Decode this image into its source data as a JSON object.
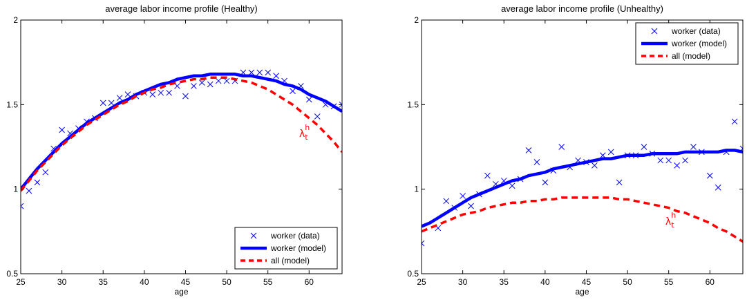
{
  "colors": {
    "worker": "#0000ff",
    "all": "#ff0000",
    "axis": "#000000"
  },
  "chart_data": [
    {
      "type": "line",
      "title": "average labor income profile (Healthy)",
      "xlabel": "age",
      "ylabel": "",
      "xlim": [
        25,
        64
      ],
      "ylim": [
        0.5,
        2
      ],
      "xticks": [
        25,
        30,
        35,
        40,
        45,
        50,
        55,
        60
      ],
      "yticks": [
        0.5,
        1,
        1.5,
        2
      ],
      "ytick_labels": [
        "0.5",
        "1",
        "1.5",
        "2"
      ],
      "legend_position": "bottom-right",
      "annotation": {
        "base": "λ",
        "sup": "h",
        "sub": "t",
        "x": 58.8,
        "y": 1.31,
        "color": "#ff0000"
      },
      "series": [
        {
          "name": "worker (data)",
          "style": "marker-x",
          "color": "#0000ff",
          "x": [
            25,
            26,
            27,
            28,
            29,
            30,
            31,
            32,
            33,
            34,
            35,
            36,
            37,
            38,
            39,
            40,
            41,
            42,
            43,
            44,
            45,
            46,
            47,
            48,
            49,
            50,
            51,
            52,
            53,
            54,
            55,
            56,
            57,
            58,
            59,
            60,
            61,
            62,
            63,
            64
          ],
          "y": [
            0.9,
            0.99,
            1.04,
            1.1,
            1.24,
            1.35,
            1.33,
            1.36,
            1.4,
            1.42,
            1.51,
            1.51,
            1.54,
            1.56,
            1.55,
            1.57,
            1.56,
            1.57,
            1.57,
            1.61,
            1.55,
            1.61,
            1.63,
            1.62,
            1.64,
            1.64,
            1.64,
            1.69,
            1.69,
            1.69,
            1.69,
            1.67,
            1.64,
            1.58,
            1.61,
            1.53,
            1.43,
            1.5,
            1.49,
            1.5
          ]
        },
        {
          "name": "worker (model)",
          "style": "solid",
          "color": "#0000ff",
          "x": [
            25,
            26,
            27,
            28,
            29,
            30,
            31,
            32,
            33,
            34,
            35,
            36,
            37,
            38,
            39,
            40,
            41,
            42,
            43,
            44,
            45,
            46,
            47,
            48,
            49,
            50,
            51,
            52,
            53,
            54,
            55,
            56,
            57,
            58,
            59,
            60,
            61,
            62,
            63,
            64
          ],
          "y": [
            1.0,
            1.06,
            1.12,
            1.17,
            1.22,
            1.27,
            1.31,
            1.35,
            1.39,
            1.42,
            1.45,
            1.48,
            1.51,
            1.53,
            1.56,
            1.58,
            1.6,
            1.62,
            1.63,
            1.65,
            1.66,
            1.67,
            1.67,
            1.68,
            1.68,
            1.68,
            1.68,
            1.67,
            1.67,
            1.66,
            1.65,
            1.64,
            1.62,
            1.61,
            1.59,
            1.56,
            1.54,
            1.52,
            1.49,
            1.46
          ]
        },
        {
          "name": "all (model)",
          "style": "dashed",
          "color": "#ff0000",
          "x": [
            25,
            26,
            27,
            28,
            29,
            30,
            31,
            32,
            33,
            34,
            35,
            36,
            37,
            38,
            39,
            40,
            41,
            42,
            43,
            44,
            45,
            46,
            47,
            48,
            49,
            50,
            51,
            52,
            53,
            54,
            55,
            56,
            57,
            58,
            59,
            60,
            61,
            62,
            63,
            64
          ],
          "y": [
            0.99,
            1.05,
            1.11,
            1.16,
            1.21,
            1.26,
            1.3,
            1.34,
            1.38,
            1.41,
            1.44,
            1.47,
            1.5,
            1.52,
            1.55,
            1.57,
            1.59,
            1.6,
            1.62,
            1.63,
            1.64,
            1.65,
            1.65,
            1.66,
            1.66,
            1.66,
            1.65,
            1.64,
            1.63,
            1.61,
            1.59,
            1.56,
            1.53,
            1.5,
            1.46,
            1.42,
            1.38,
            1.33,
            1.28,
            1.22
          ]
        }
      ]
    },
    {
      "type": "line",
      "title": "average labor income profile (Unhealthy)",
      "xlabel": "age",
      "ylabel": "",
      "xlim": [
        25,
        64
      ],
      "ylim": [
        0.5,
        2
      ],
      "xticks": [
        25,
        30,
        35,
        40,
        45,
        50,
        55,
        60
      ],
      "yticks": [
        0.5,
        1,
        1.5,
        2
      ],
      "ytick_labels": [
        "0.5",
        "1",
        "1.5",
        "2"
      ],
      "legend_position": "top-right",
      "annotation": {
        "base": "λ",
        "sup": "h",
        "sub": "t",
        "x": 54.6,
        "y": 0.79,
        "color": "#ff0000"
      },
      "series": [
        {
          "name": "worker (data)",
          "style": "marker-x",
          "color": "#0000ff",
          "x": [
            25,
            27,
            28,
            29,
            30,
            31,
            32,
            33,
            34,
            35,
            36,
            37,
            38,
            39,
            40,
            41,
            42,
            43,
            44,
            45,
            46,
            47,
            48,
            49,
            50,
            51,
            52,
            53,
            54,
            55,
            56,
            57,
            58,
            59,
            60,
            61,
            62,
            63,
            64
          ],
          "y": [
            0.68,
            0.77,
            0.93,
            0.89,
            0.96,
            0.9,
            0.97,
            1.08,
            1.03,
            1.05,
            1.02,
            1.06,
            1.23,
            1.16,
            1.04,
            1.11,
            1.25,
            1.13,
            1.17,
            1.16,
            1.14,
            1.2,
            1.22,
            1.04,
            1.2,
            1.2,
            1.25,
            1.21,
            1.17,
            1.17,
            1.14,
            1.17,
            1.25,
            1.22,
            1.08,
            1.01,
            1.22,
            1.4,
            1.24
          ]
        },
        {
          "name": "worker (model)",
          "style": "solid",
          "color": "#0000ff",
          "x": [
            25,
            26,
            27,
            28,
            29,
            30,
            31,
            32,
            33,
            34,
            35,
            36,
            37,
            38,
            39,
            40,
            41,
            42,
            43,
            44,
            45,
            46,
            47,
            48,
            49,
            50,
            51,
            52,
            53,
            54,
            55,
            56,
            57,
            58,
            59,
            60,
            61,
            62,
            63,
            64
          ],
          "y": [
            0.78,
            0.8,
            0.83,
            0.86,
            0.89,
            0.92,
            0.95,
            0.97,
            0.99,
            1.01,
            1.03,
            1.05,
            1.06,
            1.08,
            1.09,
            1.1,
            1.12,
            1.13,
            1.14,
            1.15,
            1.16,
            1.17,
            1.18,
            1.18,
            1.19,
            1.2,
            1.2,
            1.2,
            1.21,
            1.21,
            1.21,
            1.21,
            1.22,
            1.22,
            1.22,
            1.22,
            1.22,
            1.23,
            1.23,
            1.22
          ]
        },
        {
          "name": "all (model)",
          "style": "dashed",
          "color": "#ff0000",
          "x": [
            25,
            26,
            27,
            28,
            29,
            30,
            31,
            32,
            33,
            34,
            35,
            36,
            37,
            38,
            39,
            40,
            41,
            42,
            43,
            44,
            45,
            46,
            47,
            48,
            49,
            50,
            51,
            52,
            53,
            54,
            55,
            56,
            57,
            58,
            59,
            60,
            61,
            62,
            63,
            64
          ],
          "y": [
            0.75,
            0.77,
            0.79,
            0.81,
            0.83,
            0.85,
            0.86,
            0.87,
            0.89,
            0.9,
            0.91,
            0.92,
            0.92,
            0.93,
            0.93,
            0.94,
            0.94,
            0.95,
            0.95,
            0.95,
            0.95,
            0.95,
            0.95,
            0.95,
            0.94,
            0.94,
            0.93,
            0.92,
            0.91,
            0.9,
            0.89,
            0.87,
            0.86,
            0.84,
            0.82,
            0.8,
            0.77,
            0.75,
            0.72,
            0.69
          ]
        }
      ]
    }
  ]
}
